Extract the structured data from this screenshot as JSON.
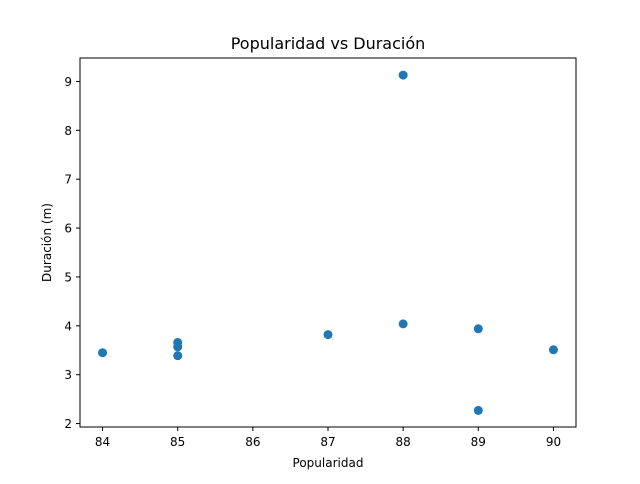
{
  "chart_data": {
    "type": "scatter",
    "title": "Popularidad vs Duración",
    "xlabel": "Popularidad",
    "ylabel": "Duración (m)",
    "xlim": [
      83.7,
      90.3
    ],
    "ylim": [
      1.93,
      9.48
    ],
    "xticks": [
      84,
      85,
      86,
      87,
      88,
      89,
      90
    ],
    "yticks": [
      2,
      3,
      4,
      5,
      6,
      7,
      8,
      9
    ],
    "grid": false,
    "marker_color": "#1f77b4",
    "points": [
      {
        "x": 84,
        "y": 3.45
      },
      {
        "x": 85,
        "y": 3.66
      },
      {
        "x": 85,
        "y": 3.57
      },
      {
        "x": 85,
        "y": 3.39
      },
      {
        "x": 87,
        "y": 3.82
      },
      {
        "x": 88,
        "y": 9.13
      },
      {
        "x": 88,
        "y": 4.04
      },
      {
        "x": 89,
        "y": 3.94
      },
      {
        "x": 89,
        "y": 2.27
      },
      {
        "x": 90,
        "y": 3.51
      }
    ]
  }
}
